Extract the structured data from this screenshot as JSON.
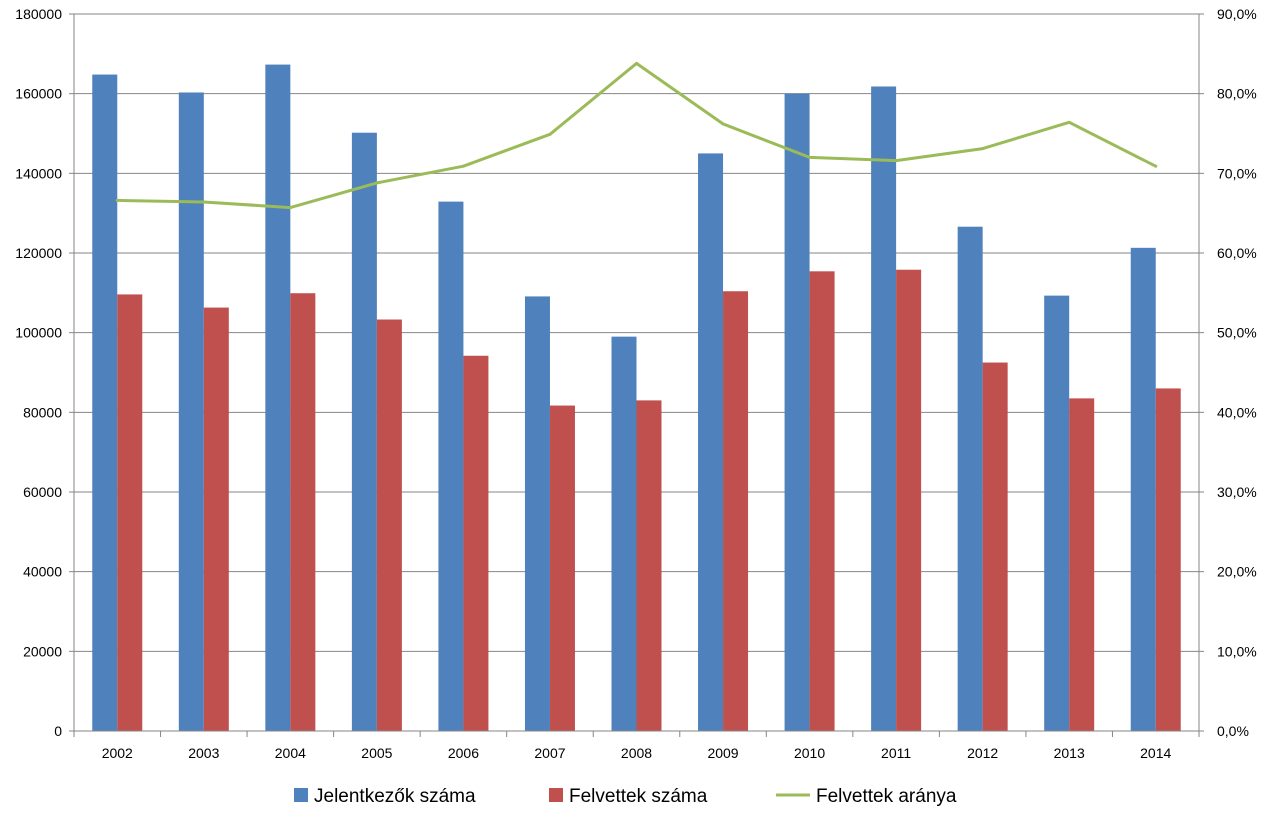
{
  "chart_data": {
    "type": "bar",
    "categories": [
      "2002",
      "2003",
      "2004",
      "2005",
      "2006",
      "2007",
      "2008",
      "2009",
      "2010",
      "2011",
      "2012",
      "2013",
      "2014"
    ],
    "series": [
      {
        "name": "Jelentkezők száma",
        "kind": "bar",
        "axis": "left",
        "color": "#4f81bd",
        "values": [
          164800,
          160300,
          167300,
          150200,
          132900,
          109100,
          99000,
          145000,
          160000,
          161800,
          126600,
          109300,
          121300
        ]
      },
      {
        "name": "Felvettek száma",
        "kind": "bar",
        "axis": "left",
        "color": "#c0504d",
        "values": [
          109600,
          106300,
          109900,
          103300,
          94200,
          81700,
          83000,
          110400,
          115400,
          115800,
          92500,
          83500,
          86000
        ]
      },
      {
        "name": "Felvettek aránya",
        "kind": "line",
        "axis": "right",
        "color": "#9bbb59",
        "values": [
          66.6,
          66.4,
          65.7,
          68.8,
          70.9,
          74.9,
          83.8,
          76.2,
          72.0,
          71.6,
          73.1,
          76.4,
          70.9
        ]
      }
    ],
    "y_left": {
      "min": 0,
      "max": 180000,
      "ticks": [
        "0",
        "20000",
        "40000",
        "60000",
        "80000",
        "100000",
        "120000",
        "140000",
        "160000",
        "180000"
      ]
    },
    "y_right": {
      "min": 0,
      "max": 90,
      "ticks": [
        "0,0%",
        "10,0%",
        "20,0%",
        "30,0%",
        "40,0%",
        "50,0%",
        "60,0%",
        "70,0%",
        "80,0%",
        "90,0%"
      ]
    },
    "grid": true,
    "legend_position": "bottom",
    "title": "",
    "xlabel": "",
    "ylabel": ""
  }
}
